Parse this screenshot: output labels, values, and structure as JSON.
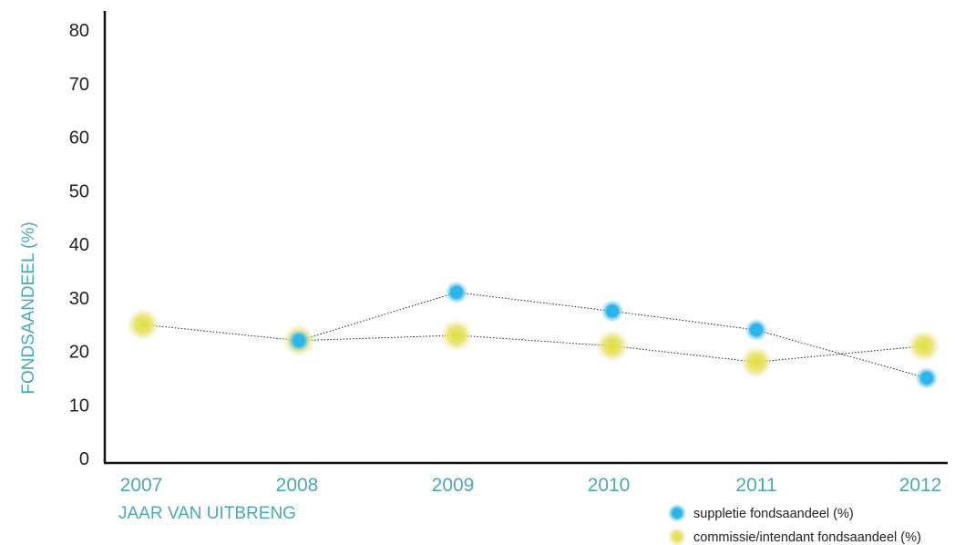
{
  "chart_data": {
    "type": "line",
    "xlabel": "JAAR VAN UITBRENG",
    "ylabel": "FONDSAANDEEL (%)",
    "categories": [
      "2007",
      "2008",
      "2009",
      "2010",
      "2011",
      "2012"
    ],
    "yticks": [
      "0",
      "10",
      "20",
      "30",
      "40",
      "50",
      "60",
      "70",
      "80"
    ],
    "ylim": [
      0,
      80
    ],
    "grid": false,
    "legend_position": "bottom-right",
    "series": [
      {
        "name": "suppletie fondsaandeel (%)",
        "values": [
          null,
          22,
          31,
          27.5,
          24,
          15
        ],
        "color": "#2bb5e8"
      },
      {
        "name": "commissie/intendant fondsaandeel (%)",
        "values": [
          25,
          22,
          23,
          21,
          18,
          21
        ],
        "color": "#e3e04a"
      }
    ],
    "colors": {
      "axis": "#111111",
      "axis_title": "#4aa8b8",
      "xtick": "#4aa8b8",
      "ytick": "#222222"
    }
  }
}
